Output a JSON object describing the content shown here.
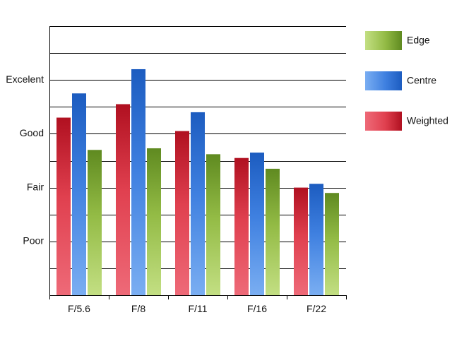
{
  "chart_data": {
    "type": "bar",
    "categories": [
      "F/5.6",
      "F/8",
      "F/11",
      "F/16",
      "F/22"
    ],
    "y_tick_labels": [
      {
        "value": 1,
        "label": "Poor"
      },
      {
        "value": 2,
        "label": "Fair"
      },
      {
        "value": 3,
        "label": "Good"
      },
      {
        "value": 4,
        "label": "Excelent"
      }
    ],
    "ylim": [
      0,
      5
    ],
    "grid_step": 0.5,
    "grid": true,
    "legend_position": "right",
    "series": [
      {
        "name": "Weighted",
        "values": [
          3.3,
          3.55,
          3.05,
          2.55,
          2.0
        ],
        "color_top": "#b01020",
        "color_mid": "#e0404f",
        "color_bottom": "#ee6a78"
      },
      {
        "name": "Centre",
        "values": [
          3.75,
          4.2,
          3.4,
          2.65,
          2.07
        ],
        "color_top": "#1c5cc0",
        "color_mid": "#3f80e0",
        "color_bottom": "#7aaef2"
      },
      {
        "name": "Edge",
        "values": [
          2.7,
          2.73,
          2.62,
          2.35,
          1.9
        ],
        "color_top": "#5f8a20",
        "color_mid": "#93bb45",
        "color_bottom": "#c3df83"
      }
    ],
    "legend_order": [
      "Edge",
      "Centre",
      "Weighted"
    ],
    "title": "",
    "xlabel": "",
    "ylabel": ""
  }
}
